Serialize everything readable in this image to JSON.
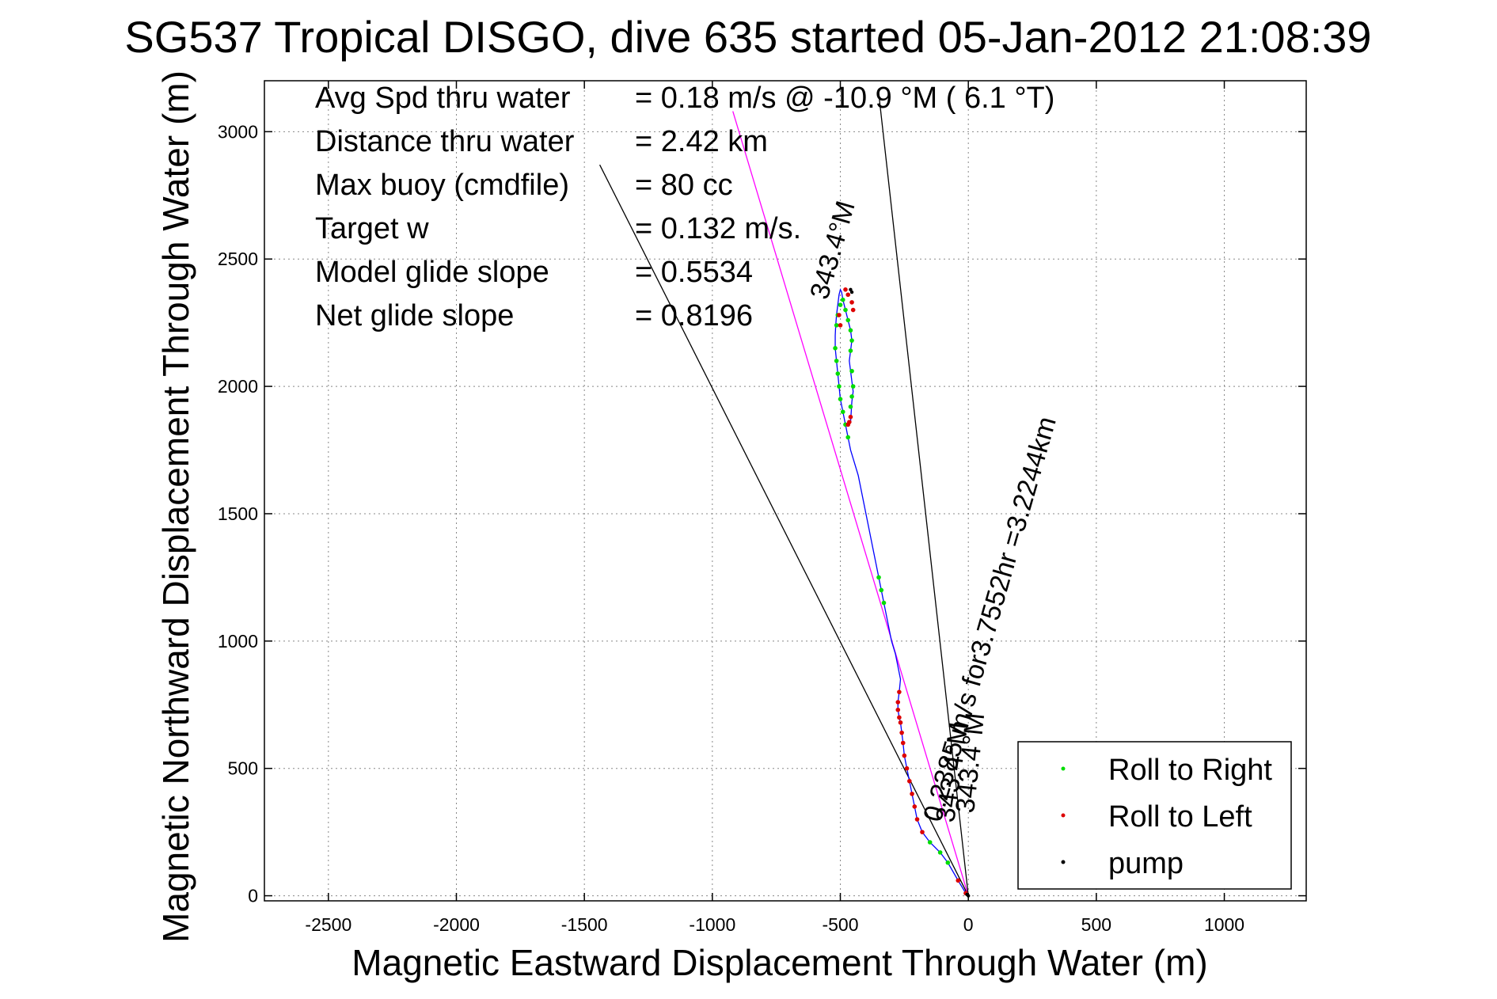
{
  "chart_data": {
    "type": "line",
    "title": "SG537 Tropical DISGO, dive 635 started 05-Jan-2012 21:08:39",
    "xlabel": "Magnetic Eastward Displacement Through Water (m)",
    "ylabel": "Magnetic Northward Displacement Through Water (m)",
    "xlim": [
      -2750,
      1320
    ],
    "ylim": [
      -20,
      3200
    ],
    "xticks": [
      -2500,
      -2000,
      -1500,
      -1000,
      -500,
      0,
      500,
      1000
    ],
    "yticks": [
      0,
      500,
      1000,
      1500,
      2000,
      2500,
      3000
    ],
    "grid": true,
    "stats": [
      {
        "label": "Avg Spd thru water",
        "value": "=  0.18 m/s @ -10.9 °M (  6.1 °T)"
      },
      {
        "label": "Distance thru water",
        "value": "=  2.42 km"
      },
      {
        "label": "Max buoy (cmdfile)",
        "value": "= 80 cc"
      },
      {
        "label": "Target w",
        "value": "= 0.132 m/s."
      },
      {
        "label": "Model glide slope",
        "value": "= 0.5534"
      },
      {
        "label": "Net glide slope",
        "value": "= 0.8196"
      }
    ],
    "annotations": {
      "current_vector": "0.2385 m/s for3.7552hr =3.2244km",
      "current_heading": "343.4°M",
      "target_heading_1": "343.4°M",
      "target_heading_2": "343.4°M"
    },
    "reference_lines": [
      {
        "name": "current",
        "color": "#ff00ff",
        "x": [
          0,
          -920
        ],
        "y": [
          0,
          3080
        ]
      },
      {
        "name": "heading-wide-1",
        "color": "#000000",
        "x": [
          0,
          -1440
        ],
        "y": [
          0,
          2870
        ]
      },
      {
        "name": "heading-wide-2",
        "color": "#000000",
        "x": [
          0,
          -350
        ],
        "y": [
          0,
          3150
        ]
      }
    ],
    "legend": {
      "position": "bottom-right",
      "entries": [
        {
          "label": "Roll to Right",
          "color": "#00dd00"
        },
        {
          "label": "Roll to Left",
          "color": "#dd0000"
        },
        {
          "label": "pump",
          "color": "#000000"
        }
      ]
    },
    "series": [
      {
        "name": "track",
        "color": "#0000ff",
        "x": [
          0,
          -10,
          -40,
          -80,
          -110,
          -150,
          -180,
          -200,
          -210,
          -220,
          -230,
          -240,
          -250,
          -255,
          -260,
          -265,
          -270,
          -275,
          -275,
          -270,
          -265,
          -275,
          -285,
          -300,
          -310,
          -320,
          -330,
          -340,
          -350,
          -360,
          -370,
          -380,
          -390,
          -400,
          -410,
          -420,
          -430,
          -445,
          -460,
          -470,
          -480,
          -490,
          -500,
          -505,
          -510,
          -515,
          -520,
          -520,
          -518,
          -515,
          -510,
          -505,
          -500,
          -495,
          -490,
          -480,
          -470,
          -460,
          -455,
          -460,
          -465,
          -460,
          -455,
          -450,
          -455,
          -460
        ],
        "y": [
          0,
          10,
          60,
          130,
          170,
          210,
          250,
          300,
          350,
          400,
          450,
          500,
          550,
          600,
          640,
          680,
          700,
          730,
          760,
          800,
          850,
          900,
          950,
          1000,
          1050,
          1100,
          1150,
          1200,
          1250,
          1300,
          1350,
          1400,
          1450,
          1500,
          1550,
          1600,
          1650,
          1700,
          1750,
          1800,
          1850,
          1900,
          1950,
          2000,
          2050,
          2100,
          2150,
          2200,
          2240,
          2280,
          2320,
          2360,
          2380,
          2370,
          2340,
          2300,
          2260,
          2220,
          2180,
          2140,
          2100,
          2060,
          2020,
          1980,
          1940,
          1860
        ]
      }
    ],
    "roll_right": {
      "x": [
        -80,
        -110,
        -150,
        -470,
        -480,
        -490,
        -500,
        -505,
        -510,
        -515,
        -520,
        -515,
        -510,
        -500,
        -490,
        -480,
        -470,
        -460,
        -455,
        -460,
        -455,
        -450,
        -455,
        -460,
        -330,
        -340,
        -350
      ],
      "y": [
        130,
        170,
        210,
        1800,
        1850,
        1900,
        1950,
        2000,
        2050,
        2100,
        2150,
        2240,
        2280,
        2320,
        2340,
        2300,
        2260,
        2220,
        2180,
        2140,
        2060,
        2000,
        1960,
        1920,
        1150,
        1200,
        1250
      ]
    },
    "roll_left": {
      "x": [
        -10,
        -40,
        -180,
        -200,
        -210,
        -220,
        -230,
        -240,
        -250,
        -255,
        -260,
        -265,
        -270,
        -275,
        -275,
        -270,
        -465,
        -470,
        -460,
        -500,
        -505,
        -480,
        -470,
        -455,
        -450
      ],
      "y": [
        10,
        60,
        250,
        300,
        350,
        400,
        450,
        500,
        550,
        600,
        640,
        680,
        700,
        730,
        760,
        800,
        1860,
        1850,
        1880,
        2240,
        2280,
        2380,
        2360,
        2330,
        2300
      ]
    },
    "pump": {
      "x": [
        0,
        -5,
        -460,
        -455
      ],
      "y": [
        0,
        5,
        2380,
        2370
      ]
    }
  }
}
